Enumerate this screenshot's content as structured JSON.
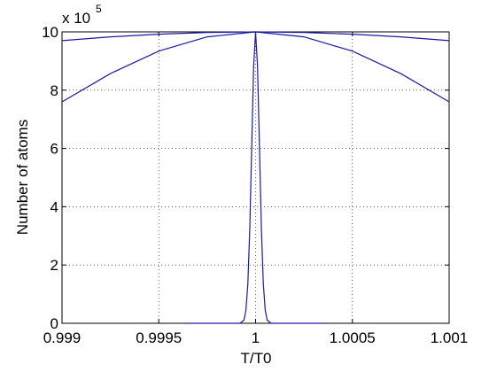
{
  "chart_data": {
    "type": "line",
    "xlabel": "T/T0",
    "ylabel": "Number of atoms",
    "y_exponent_label": {
      "base": "x 10",
      "exp": "5"
    },
    "xlim": [
      0.999,
      1.001
    ],
    "xticks": [
      0.999,
      0.9995,
      1,
      1.0005,
      1.001
    ],
    "ylim": [
      0,
      10
    ],
    "yticks": [
      0,
      2,
      4,
      6,
      8,
      10
    ],
    "grid": true,
    "series": [
      {
        "color": "#1a1aa0",
        "x": [
          0.99964,
          0.99992,
          0.99994,
          0.99995,
          0.99996,
          0.99997,
          0.99998,
          0.99999,
          1,
          1.00001,
          1.00002,
          1.00003,
          1.00004,
          1.00005,
          1.00006,
          1.00008,
          1.00037
        ],
        "values": [
          0,
          0,
          0.11,
          0.44,
          1.35,
          3.25,
          6.07,
          8.82,
          10,
          8.82,
          6.07,
          3.25,
          1.35,
          0.44,
          0.11,
          0,
          0
        ]
      },
      {
        "color": "#1a1aa0",
        "x": [
          0.999,
          0.99925,
          0.9995,
          0.99975,
          1,
          1.00025,
          1.0005,
          1.00075,
          1.001
        ],
        "values": [
          7.6,
          8.57,
          9.34,
          9.83,
          10,
          9.83,
          9.34,
          8.57,
          7.6
        ]
      },
      {
        "color": "#1a1aa0",
        "x": [
          0.999,
          0.99925,
          0.9995,
          0.99975,
          1,
          1.00025,
          1.0005,
          1.00075,
          1.001
        ],
        "values": [
          9.7,
          9.83,
          9.92,
          9.98,
          10,
          9.98,
          9.92,
          9.83,
          9.7
        ]
      }
    ]
  }
}
